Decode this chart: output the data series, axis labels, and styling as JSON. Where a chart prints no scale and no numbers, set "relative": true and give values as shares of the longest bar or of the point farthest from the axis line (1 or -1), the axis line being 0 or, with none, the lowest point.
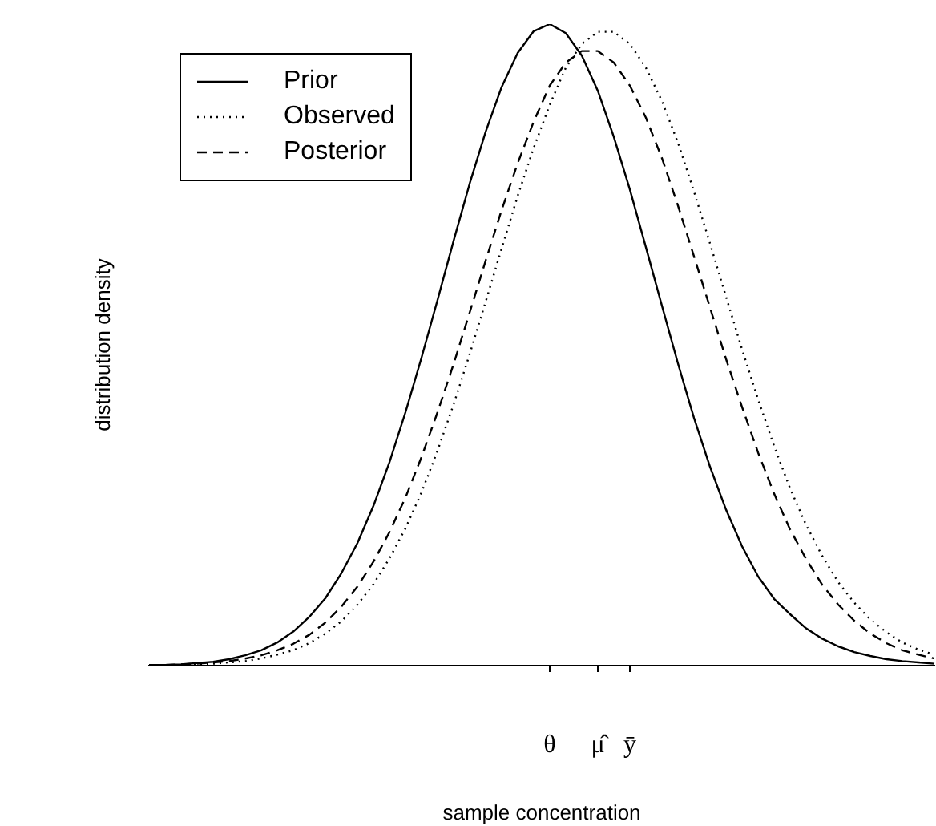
{
  "chart_data": {
    "type": "line",
    "relative": true,
    "xlabel": "sample concentration",
    "ylabel": "distribution density",
    "categories": [
      null,
      null,
      null,
      null,
      null,
      null,
      null,
      null,
      null,
      null,
      null,
      null,
      null,
      null,
      null,
      null,
      null,
      null,
      null,
      null,
      null,
      null,
      null,
      null,
      null,
      "θ",
      null,
      null,
      "μ̂",
      null,
      "ȳ",
      null,
      null,
      null,
      null,
      null,
      null,
      null,
      null,
      null,
      null,
      null,
      null,
      null,
      null,
      null,
      null,
      null,
      null,
      null
    ],
    "series": [
      {
        "name": "Prior",
        "color": "#000000",
        "line_style": "solid",
        "values": [
          0.001,
          0.001,
          0.002,
          0.004,
          0.006,
          0.01,
          0.016,
          0.024,
          0.036,
          0.053,
          0.076,
          0.105,
          0.144,
          0.191,
          0.249,
          0.317,
          0.395,
          0.48,
          0.57,
          0.662,
          0.751,
          0.832,
          0.902,
          0.955,
          0.989,
          1,
          0.986,
          0.951,
          0.896,
          0.824,
          0.742,
          0.652,
          0.561,
          0.471,
          0.386,
          0.31,
          0.243,
          0.186,
          0.139,
          0.104,
          0.08,
          0.058,
          0.042,
          0.03,
          0.021,
          0.015,
          0.01,
          0.007,
          0.005,
          0.003
        ]
      },
      {
        "name": "Observed",
        "color": "#000000",
        "line_style": "dotted",
        "values": [
          0,
          0.001,
          0.001,
          0.002,
          0.003,
          0.005,
          0.007,
          0.011,
          0.017,
          0.024,
          0.035,
          0.05,
          0.069,
          0.095,
          0.127,
          0.167,
          0.214,
          0.27,
          0.335,
          0.407,
          0.485,
          0.567,
          0.65,
          0.732,
          0.807,
          0.874,
          0.932,
          0.969,
          0.988,
          0.988,
          0.969,
          0.932,
          0.88,
          0.815,
          0.739,
          0.658,
          0.575,
          0.493,
          0.415,
          0.342,
          0.276,
          0.219,
          0.171,
          0.13,
          0.098,
          0.072,
          0.052,
          0.036,
          0.025,
          0.017
        ]
      },
      {
        "name": "Posterior",
        "color": "#000000",
        "line_style": "dashed",
        "values": [
          0.001,
          0.001,
          0.002,
          0.003,
          0.005,
          0.007,
          0.011,
          0.016,
          0.024,
          0.034,
          0.048,
          0.067,
          0.092,
          0.123,
          0.162,
          0.208,
          0.262,
          0.325,
          0.395,
          0.47,
          0.55,
          0.631,
          0.71,
          0.783,
          0.848,
          0.904,
          0.94,
          0.958,
          0.958,
          0.94,
          0.904,
          0.854,
          0.791,
          0.717,
          0.638,
          0.558,
          0.478,
          0.403,
          0.332,
          0.268,
          0.212,
          0.166,
          0.126,
          0.095,
          0.07,
          0.05,
          0.035,
          0.024,
          0.017,
          0.011
        ]
      }
    ],
    "grid": false,
    "legend": "top left",
    "marker": "none",
    "tick_labels": "x"
  }
}
